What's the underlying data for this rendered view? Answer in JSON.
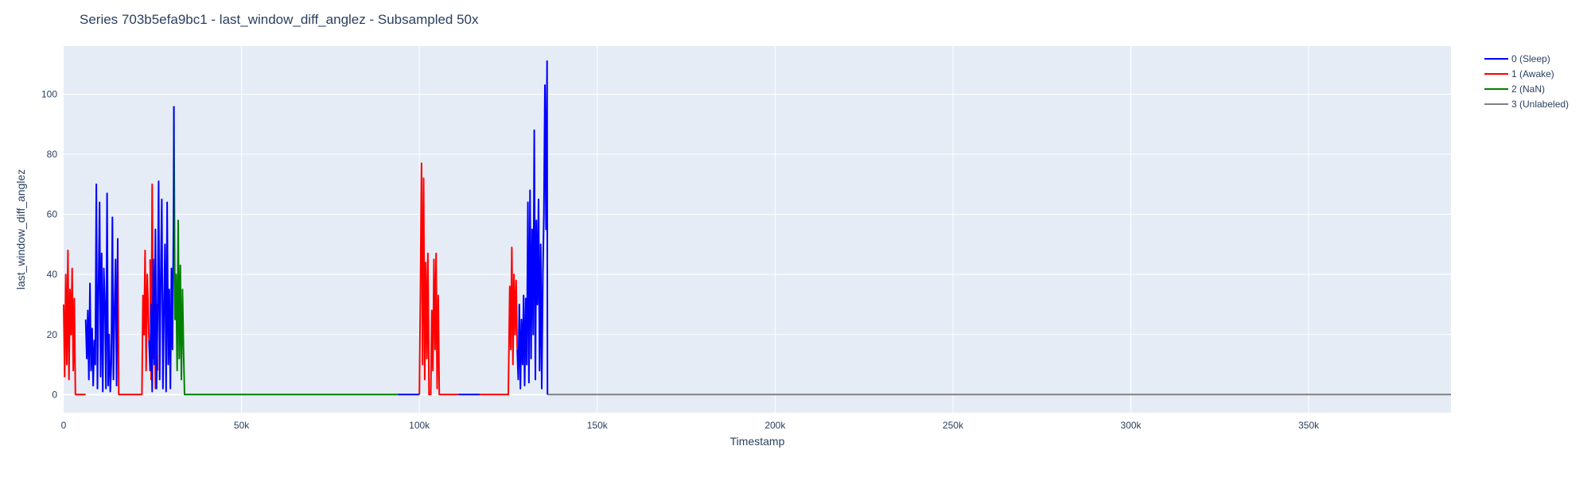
{
  "chart_data": {
    "type": "line",
    "title": "Series 703b5efa9bc1 - last_window_diff_anglez - Subsampled 50x",
    "xlabel": "Timestamp",
    "ylabel": "last_window_diff_anglez",
    "xlim": [
      0,
      390000
    ],
    "ylim": [
      -6,
      116
    ],
    "x_ticks": [
      0,
      50000,
      100000,
      150000,
      200000,
      250000,
      300000,
      350000
    ],
    "x_tick_labels": [
      "0",
      "50k",
      "100k",
      "150k",
      "200k",
      "250k",
      "300k",
      "350k"
    ],
    "y_ticks": [
      0,
      20,
      40,
      60,
      80,
      100
    ],
    "y_tick_labels": [
      "0",
      "20",
      "40",
      "60",
      "80",
      "100"
    ],
    "grid": true,
    "legend_position": "right",
    "plot_background": "#e5ecf6",
    "series": [
      {
        "name": "0 (Sleep)",
        "color": "#0000ff",
        "segments": [
          [
            [
              6200,
              25
            ],
            [
              6500,
              12
            ],
            [
              6800,
              28
            ],
            [
              7100,
              5
            ],
            [
              7400,
              37
            ],
            [
              7700,
              8
            ],
            [
              8000,
              22
            ],
            [
              8300,
              3
            ],
            [
              8600,
              18
            ],
            [
              8900,
              10
            ],
            [
              9200,
              70
            ],
            [
              9500,
              2
            ],
            [
              9800,
              35
            ],
            [
              10100,
              64
            ],
            [
              10400,
              6
            ],
            [
              10700,
              47
            ],
            [
              11000,
              1
            ],
            [
              11300,
              42
            ],
            [
              11600,
              30
            ],
            [
              11900,
              2
            ],
            [
              12200,
              67
            ],
            [
              12500,
              3
            ],
            [
              12800,
              20
            ],
            [
              13100,
              1
            ],
            [
              13400,
              10
            ],
            [
              13700,
              59
            ],
            [
              14000,
              5
            ],
            [
              14300,
              27
            ],
            [
              14600,
              45
            ],
            [
              14900,
              3
            ],
            [
              15200,
              52
            ]
          ],
          [
            [
              24000,
              18
            ],
            [
              24300,
              8
            ],
            [
              24600,
              30
            ],
            [
              24900,
              1
            ],
            [
              25200,
              45
            ],
            [
              25500,
              10
            ],
            [
              25800,
              55
            ],
            [
              26100,
              2
            ],
            [
              26400,
              25
            ],
            [
              26700,
              71
            ],
            [
              27000,
              5
            ],
            [
              27300,
              40
            ],
            [
              27600,
              65
            ],
            [
              27900,
              2
            ],
            [
              28200,
              28
            ],
            [
              28500,
              50
            ],
            [
              28800,
              1
            ],
            [
              29100,
              64
            ],
            [
              29400,
              10
            ],
            [
              29700,
              35
            ],
            [
              30000,
              2
            ],
            [
              30300,
              42
            ],
            [
              30600,
              15
            ],
            [
              30900,
              60
            ],
            [
              31000,
              96
            ]
          ],
          [
            [
              94000,
              0
            ],
            [
              95000,
              0
            ],
            [
              96000,
              0
            ],
            [
              97000,
              0
            ],
            [
              98000,
              0
            ],
            [
              99000,
              0
            ],
            [
              100000,
              0
            ]
          ],
          [
            [
              111000,
              0
            ],
            [
              112000,
              0
            ],
            [
              113000,
              0
            ],
            [
              114000,
              0
            ],
            [
              115000,
              0
            ],
            [
              116000,
              0
            ],
            [
              117000,
              0
            ]
          ],
          [
            [
              127500,
              15
            ],
            [
              127800,
              5
            ],
            [
              128100,
              30
            ],
            [
              128400,
              2
            ],
            [
              128700,
              25
            ],
            [
              129000,
              10
            ],
            [
              129300,
              33
            ],
            [
              129600,
              3
            ],
            [
              129900,
              32
            ],
            [
              130200,
              10
            ],
            [
              130500,
              64
            ],
            [
              130800,
              4
            ],
            [
              131100,
              68
            ],
            [
              131400,
              12
            ],
            [
              131700,
              55
            ],
            [
              132000,
              20
            ],
            [
              132300,
              88
            ],
            [
              132600,
              5
            ],
            [
              132900,
              58
            ],
            [
              133200,
              30
            ],
            [
              133500,
              65
            ],
            [
              133800,
              8
            ],
            [
              134100,
              50
            ],
            [
              134400,
              2
            ],
            [
              134700,
              40
            ],
            [
              135000,
              60
            ],
            [
              135300,
              103
            ],
            [
              135600,
              55
            ],
            [
              135900,
              111
            ],
            [
              136000,
              0
            ]
          ]
        ]
      },
      {
        "name": "1 (Awake)",
        "color": "#ff0000",
        "segments": [
          [
            [
              0,
              30
            ],
            [
              300,
              6
            ],
            [
              600,
              40
            ],
            [
              900,
              10
            ],
            [
              1200,
              48
            ],
            [
              1500,
              5
            ],
            [
              1800,
              35
            ],
            [
              2100,
              20
            ],
            [
              2400,
              42
            ],
            [
              2700,
              8
            ],
            [
              3000,
              32
            ],
            [
              3300,
              0
            ],
            [
              4000,
              0
            ],
            [
              5000,
              0
            ],
            [
              6000,
              0
            ],
            [
              6200,
              0
            ]
          ],
          [
            [
              15200,
              52
            ],
            [
              15500,
              0
            ],
            [
              17000,
              0
            ],
            [
              18500,
              0
            ],
            [
              20000,
              0
            ],
            [
              21500,
              0
            ],
            [
              22000,
              0
            ],
            [
              22300,
              33
            ],
            [
              22600,
              20
            ],
            [
              22900,
              48
            ],
            [
              23200,
              8
            ],
            [
              23500,
              40
            ],
            [
              23800,
              28
            ],
            [
              24000,
              18
            ]
          ],
          [
            [
              24300,
              45
            ],
            [
              24600,
              5
            ],
            [
              24900,
              70
            ],
            [
              25200,
              12
            ],
            [
              25500,
              38
            ],
            [
              25800,
              2
            ],
            [
              26100,
              30
            ],
            [
              26400,
              8
            ]
          ],
          [
            [
              100000,
              0
            ],
            [
              100300,
              35
            ],
            [
              100600,
              77
            ],
            [
              100900,
              10
            ],
            [
              101200,
              72
            ],
            [
              101500,
              5
            ],
            [
              101800,
              44
            ],
            [
              102100,
              12
            ],
            [
              102400,
              47
            ],
            [
              102700,
              0
            ],
            [
              103200,
              0
            ],
            [
              103500,
              28
            ],
            [
              103800,
              8
            ],
            [
              104100,
              45
            ],
            [
              104400,
              15
            ],
            [
              104700,
              47
            ],
            [
              105000,
              2
            ],
            [
              105300,
              33
            ],
            [
              105600,
              0
            ],
            [
              107000,
              0
            ],
            [
              108500,
              0
            ],
            [
              110000,
              0
            ],
            [
              111000,
              0
            ]
          ],
          [
            [
              117000,
              0
            ],
            [
              119000,
              0
            ],
            [
              121000,
              0
            ],
            [
              123000,
              0
            ],
            [
              125000,
              0
            ],
            [
              125400,
              36
            ],
            [
              125700,
              15
            ],
            [
              126000,
              49
            ],
            [
              126300,
              10
            ],
            [
              126600,
              40
            ],
            [
              126900,
              20
            ],
            [
              127200,
              38
            ],
            [
              127500,
              15
            ]
          ]
        ]
      },
      {
        "name": "2 (NaN)",
        "color": "#008000",
        "segments": [
          [
            [
              31000,
              96
            ],
            [
              31300,
              25
            ],
            [
              31600,
              40
            ],
            [
              31900,
              8
            ],
            [
              32200,
              58
            ],
            [
              32500,
              12
            ],
            [
              32800,
              43
            ],
            [
              33100,
              5
            ],
            [
              33400,
              35
            ],
            [
              33700,
              15
            ],
            [
              34000,
              0
            ],
            [
              40000,
              0
            ],
            [
              50000,
              0
            ],
            [
              60000,
              0
            ],
            [
              70000,
              0
            ],
            [
              80000,
              0
            ],
            [
              90000,
              0
            ],
            [
              94000,
              0
            ]
          ]
        ]
      },
      {
        "name": "3 (Unlabeled)",
        "color": "#808080",
        "segments": [
          [
            [
              136000,
              0
            ],
            [
              150000,
              0
            ],
            [
              200000,
              0
            ],
            [
              250000,
              0
            ],
            [
              300000,
              0
            ],
            [
              350000,
              0
            ],
            [
              390000,
              0
            ]
          ]
        ]
      }
    ]
  }
}
